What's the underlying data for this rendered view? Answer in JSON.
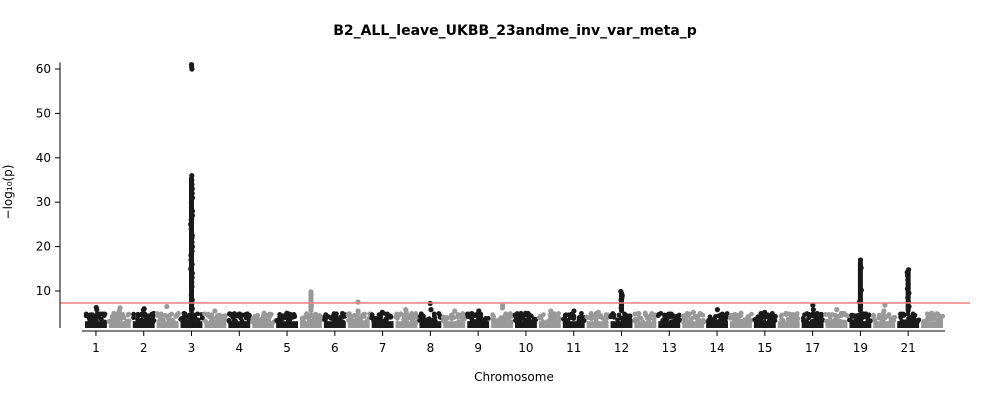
{
  "chart_data": {
    "type": "scatter",
    "title": "B2_ALL_leave_UKBB_23andme_inv_var_meta_p",
    "xlabel": "Chromosome",
    "ylabel": "−log₁₀(p)",
    "ylim": [
      0,
      62
    ],
    "yticks": [
      10,
      20,
      30,
      40,
      50,
      60
    ],
    "threshold": 7.3,
    "colors": {
      "dark": "#1a1a1a",
      "light": "#999999",
      "threshold": "#f08080"
    },
    "grid": false,
    "legend": "none",
    "chromosomes": [
      {
        "label": "1",
        "peaks": [
          6.3,
          5.8
        ]
      },
      {
        "label": "",
        "peaks": [
          6.2,
          5.5
        ]
      },
      {
        "label": "2",
        "peaks": [
          6.0,
          5.7
        ]
      },
      {
        "label": "",
        "peaks": [
          6.5
        ]
      },
      {
        "label": "3",
        "peaks": [
          61.0,
          60.5,
          60.0,
          36.0,
          35.0,
          34.0,
          33.0,
          32.0,
          31.0,
          30.0,
          29.0,
          28.0,
          27.0,
          26.0,
          25.0,
          24.0,
          22.5,
          22.0,
          21.0,
          20.0,
          19.0,
          18.0,
          17.0,
          16.0,
          15.0,
          14.0,
          13.0,
          12.0,
          11.0,
          10.0,
          9.0,
          8.0,
          7.0,
          6.0
        ]
      },
      {
        "label": "",
        "peaks": [
          5.5
        ]
      },
      {
        "label": "4",
        "peaks": [
          4.8
        ]
      },
      {
        "label": "",
        "peaks": [
          5.0
        ]
      },
      {
        "label": "5",
        "peaks": [
          5.0
        ]
      },
      {
        "label": "",
        "peaks": [
          9.8,
          9.3,
          7.0,
          6.5
        ]
      },
      {
        "label": "6",
        "peaks": [
          4.8
        ]
      },
      {
        "label": "",
        "peaks": [
          7.5,
          5.5
        ]
      },
      {
        "label": "7",
        "peaks": [
          5.2
        ]
      },
      {
        "label": "",
        "peaks": [
          5.8,
          5.2
        ]
      },
      {
        "label": "8",
        "peaks": [
          7.2,
          5.8
        ]
      },
      {
        "label": "",
        "peaks": [
          5.5
        ]
      },
      {
        "label": "9",
        "peaks": [
          5.5
        ]
      },
      {
        "label": "",
        "peaks": [
          6.8,
          6.2
        ]
      },
      {
        "label": "10",
        "peaks": [
          5.0
        ]
      },
      {
        "label": "",
        "peaks": [
          5.5
        ]
      },
      {
        "label": "11",
        "peaks": [
          5.5
        ]
      },
      {
        "label": "",
        "peaks": [
          5.2
        ]
      },
      {
        "label": "12",
        "peaks": [
          9.9,
          9.5,
          9.0,
          8.5,
          8.0,
          6.2
        ]
      },
      {
        "label": "",
        "peaks": [
          5.0
        ]
      },
      {
        "label": "13",
        "peaks": [
          4.8
        ]
      },
      {
        "label": "",
        "peaks": [
          5.2
        ]
      },
      {
        "label": "14",
        "peaks": [
          5.8
        ]
      },
      {
        "label": "",
        "peaks": [
          5.0
        ]
      },
      {
        "label": "15",
        "peaks": [
          5.2
        ]
      },
      {
        "label": "",
        "peaks": [
          4.8
        ]
      },
      {
        "label": "17",
        "peaks": [
          6.8,
          5.8
        ]
      },
      {
        "label": "",
        "peaks": [
          5.8
        ]
      },
      {
        "label": "19",
        "peaks": [
          17.0,
          15.2,
          10.2,
          8.0,
          7.5,
          6.8
        ]
      },
      {
        "label": "",
        "peaks": [
          6.8,
          5.5
        ]
      },
      {
        "label": "21",
        "peaks": [
          14.8,
          14.2,
          13.5,
          12.5,
          11.5,
          10.5,
          9.5,
          8.5,
          7.5,
          6.5
        ]
      },
      {
        "label": "",
        "peaks": [
          5.0
        ]
      }
    ]
  }
}
